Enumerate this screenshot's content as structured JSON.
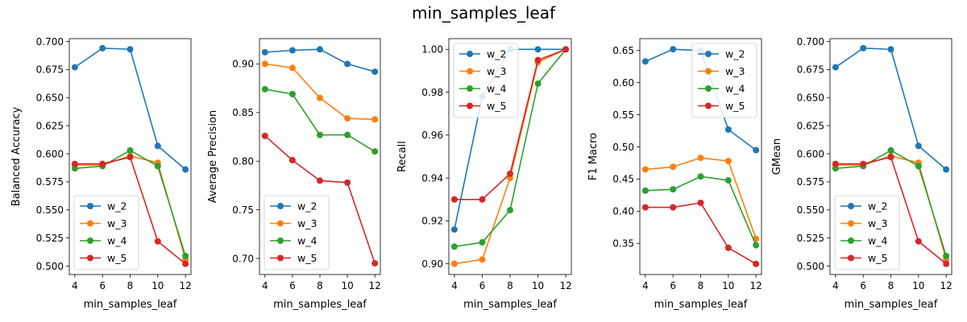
{
  "figure": {
    "title": "min_samples_leaf"
  },
  "chart_data": [
    {
      "type": "line",
      "xlabel": "min_samples_leaf",
      "ylabel": "Balanced Accuracy",
      "x": [
        4,
        6,
        8,
        10,
        12
      ],
      "xticks": [
        "4",
        "6",
        "8",
        "10",
        "12"
      ],
      "xlim": [
        3.6,
        12.4
      ],
      "ylim": [
        0.4925,
        0.7025
      ],
      "yticks": [
        "0.500",
        "0.525",
        "0.550",
        "0.575",
        "0.600",
        "0.625",
        "0.650",
        "0.675",
        "0.700"
      ],
      "legend": "lower-left",
      "grid": false,
      "series": [
        {
          "name": "w_2",
          "color": "#1f77b4",
          "values": [
            0.677,
            0.694,
            0.693,
            0.607,
            0.586
          ]
        },
        {
          "name": "w_3",
          "color": "#ff7f0e",
          "values": [
            0.59,
            0.59,
            0.598,
            0.592,
            0.506
          ]
        },
        {
          "name": "w_4",
          "color": "#2ca02c",
          "values": [
            0.587,
            0.589,
            0.603,
            0.589,
            0.509
          ]
        },
        {
          "name": "w_5",
          "color": "#d62728",
          "values": [
            0.591,
            0.591,
            0.597,
            0.522,
            0.502
          ]
        }
      ]
    },
    {
      "type": "line",
      "xlabel": "min_samples_leaf",
      "ylabel": "Average Precision",
      "x": [
        4,
        6,
        8,
        10,
        12
      ],
      "xticks": [
        "4",
        "6",
        "8",
        "10",
        "12"
      ],
      "xlim": [
        3.6,
        12.4
      ],
      "ylim": [
        0.6835,
        0.926
      ],
      "yticks": [
        "0.70",
        "0.75",
        "0.80",
        "0.85",
        "0.90"
      ],
      "legend": "lower-left",
      "grid": false,
      "series": [
        {
          "name": "w_2",
          "color": "#1f77b4",
          "values": [
            0.912,
            0.914,
            0.915,
            0.9,
            0.892
          ]
        },
        {
          "name": "w_3",
          "color": "#ff7f0e",
          "values": [
            0.9,
            0.896,
            0.865,
            0.844,
            0.843
          ]
        },
        {
          "name": "w_4",
          "color": "#2ca02c",
          "values": [
            0.874,
            0.869,
            0.827,
            0.827,
            0.81
          ]
        },
        {
          "name": "w_5",
          "color": "#d62728",
          "values": [
            0.826,
            0.801,
            0.78,
            0.778,
            0.695
          ]
        }
      ]
    },
    {
      "type": "line",
      "xlabel": "min_samples_leaf",
      "ylabel": "Recall",
      "x": [
        4,
        6,
        8,
        10,
        12
      ],
      "xticks": [
        "4",
        "6",
        "8",
        "10",
        "12"
      ],
      "xlim": [
        3.6,
        12.4
      ],
      "ylim": [
        0.895,
        1.005
      ],
      "yticks": [
        "0.90",
        "0.92",
        "0.94",
        "0.96",
        "0.98",
        "1.00"
      ],
      "legend": "upper-left",
      "grid": false,
      "series": [
        {
          "name": "w_2",
          "color": "#1f77b4",
          "values": [
            0.916,
            0.978,
            1.0,
            1.0,
            1.0
          ]
        },
        {
          "name": "w_3",
          "color": "#ff7f0e",
          "values": [
            0.9,
            0.902,
            0.94,
            0.994,
            1.0
          ]
        },
        {
          "name": "w_4",
          "color": "#2ca02c",
          "values": [
            0.908,
            0.91,
            0.925,
            0.984,
            1.0
          ]
        },
        {
          "name": "w_5",
          "color": "#d62728",
          "values": [
            0.93,
            0.93,
            0.942,
            0.995,
            1.0
          ]
        }
      ]
    },
    {
      "type": "line",
      "xlabel": "min_samples_leaf",
      "ylabel": "F1 Macro",
      "x": [
        4,
        6,
        8,
        10,
        12
      ],
      "xticks": [
        "4",
        "6",
        "8",
        "10",
        "12"
      ],
      "xlim": [
        3.6,
        12.4
      ],
      "ylim": [
        0.3015,
        0.6685
      ],
      "yticks": [
        "0.35",
        "0.40",
        "0.45",
        "0.50",
        "0.55",
        "0.60",
        "0.65"
      ],
      "legend": "upper-right",
      "grid": false,
      "series": [
        {
          "name": "w_2",
          "color": "#1f77b4",
          "values": [
            0.633,
            0.652,
            0.65,
            0.527,
            0.495
          ]
        },
        {
          "name": "w_3",
          "color": "#ff7f0e",
          "values": [
            0.465,
            0.469,
            0.483,
            0.478,
            0.357
          ]
        },
        {
          "name": "w_4",
          "color": "#2ca02c",
          "values": [
            0.432,
            0.434,
            0.454,
            0.448,
            0.347
          ]
        },
        {
          "name": "w_5",
          "color": "#d62728",
          "values": [
            0.406,
            0.406,
            0.413,
            0.343,
            0.318
          ]
        }
      ]
    },
    {
      "type": "line",
      "xlabel": "min_samples_leaf",
      "ylabel": "GMean",
      "x": [
        4,
        6,
        8,
        10,
        12
      ],
      "xticks": [
        "4",
        "6",
        "8",
        "10",
        "12"
      ],
      "xlim": [
        3.6,
        12.4
      ],
      "ylim": [
        0.4925,
        0.7025
      ],
      "yticks": [
        "0.500",
        "0.525",
        "0.550",
        "0.575",
        "0.600",
        "0.625",
        "0.650",
        "0.675",
        "0.700"
      ],
      "legend": "lower-left",
      "grid": false,
      "series": [
        {
          "name": "w_2",
          "color": "#1f77b4",
          "values": [
            0.677,
            0.694,
            0.693,
            0.607,
            0.586
          ]
        },
        {
          "name": "w_3",
          "color": "#ff7f0e",
          "values": [
            0.59,
            0.59,
            0.598,
            0.592,
            0.506
          ]
        },
        {
          "name": "w_4",
          "color": "#2ca02c",
          "values": [
            0.587,
            0.589,
            0.603,
            0.589,
            0.509
          ]
        },
        {
          "name": "w_5",
          "color": "#d62728",
          "values": [
            0.591,
            0.591,
            0.597,
            0.522,
            0.502
          ]
        }
      ]
    }
  ]
}
